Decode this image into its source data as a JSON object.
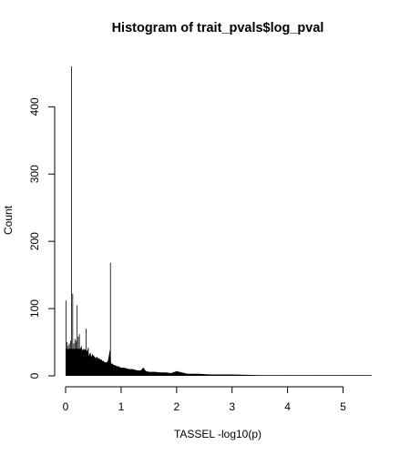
{
  "chart_data": {
    "type": "bar",
    "title": "Histogram of trait_pvals$log_pval",
    "xlabel": "TASSEL -log10(p)",
    "ylabel": "Count",
    "xlim": [
      0,
      5.5
    ],
    "ylim": [
      0,
      460
    ],
    "x_ticks": [
      0,
      1,
      2,
      3,
      4,
      5
    ],
    "y_ticks": [
      0,
      100,
      200,
      300,
      400
    ],
    "grid": false,
    "legend": "none",
    "bin_width": 0.002,
    "x": [
      0.0,
      0.02,
      0.04,
      0.06,
      0.08,
      0.1,
      0.12,
      0.14,
      0.16,
      0.18,
      0.2,
      0.22,
      0.24,
      0.26,
      0.28,
      0.3,
      0.32,
      0.34,
      0.36,
      0.38,
      0.4,
      0.42,
      0.44,
      0.46,
      0.48,
      0.5,
      0.52,
      0.54,
      0.56,
      0.58,
      0.6,
      0.62,
      0.64,
      0.66,
      0.68,
      0.7,
      0.72,
      0.74,
      0.76,
      0.78,
      0.8,
      0.82,
      0.84,
      0.86,
      0.88,
      0.9,
      0.95,
      1.0,
      1.05,
      1.1,
      1.15,
      1.2,
      1.25,
      1.3,
      1.35,
      1.4,
      1.45,
      1.5,
      1.6,
      1.7,
      1.8,
      1.9,
      2.0,
      2.2,
      2.4,
      2.6,
      2.8,
      3.0,
      3.5,
      4.0,
      4.5,
      5.0,
      5.5
    ],
    "values": [
      112,
      50,
      45,
      48,
      52,
      460,
      122,
      48,
      55,
      52,
      105,
      58,
      62,
      42,
      44,
      38,
      40,
      38,
      70,
      36,
      42,
      30,
      34,
      28,
      32,
      30,
      28,
      26,
      28,
      26,
      26,
      24,
      24,
      22,
      22,
      20,
      20,
      20,
      22,
      30,
      168,
      18,
      18,
      16,
      16,
      15,
      14,
      12,
      12,
      11,
      10,
      10,
      9,
      8,
      8,
      12,
      7,
      6,
      6,
      5,
      5,
      4,
      7,
      3,
      3,
      2,
      2,
      2,
      1,
      1,
      1,
      1,
      1
    ]
  }
}
